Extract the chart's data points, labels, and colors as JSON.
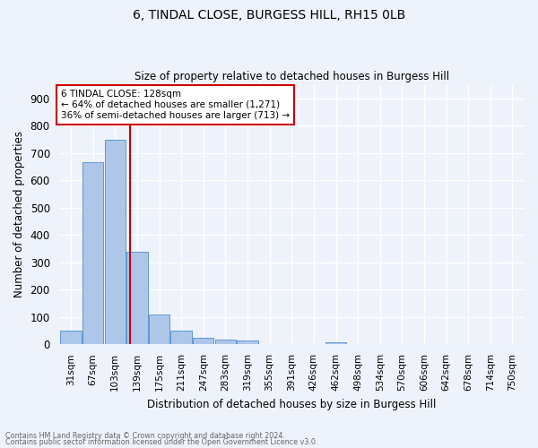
{
  "title1": "6, TINDAL CLOSE, BURGESS HILL, RH15 0LB",
  "title2": "Size of property relative to detached houses in Burgess Hill",
  "xlabel": "Distribution of detached houses by size in Burgess Hill",
  "ylabel": "Number of detached properties",
  "categories": [
    "31sqm",
    "67sqm",
    "103sqm",
    "139sqm",
    "175sqm",
    "211sqm",
    "247sqm",
    "283sqm",
    "319sqm",
    "355sqm",
    "391sqm",
    "426sqm",
    "462sqm",
    "498sqm",
    "534sqm",
    "570sqm",
    "606sqm",
    "642sqm",
    "678sqm",
    "714sqm",
    "750sqm"
  ],
  "bar_values": [
    50,
    665,
    750,
    338,
    108,
    50,
    25,
    18,
    13,
    0,
    0,
    0,
    8,
    0,
    0,
    0,
    0,
    0,
    0,
    0,
    0
  ],
  "bar_color": "#aec6e8",
  "bar_edge_color": "#5b9bd5",
  "ylim": [
    0,
    950
  ],
  "yticks": [
    0,
    100,
    200,
    300,
    400,
    500,
    600,
    700,
    800,
    900
  ],
  "property_line_x": 2.67,
  "property_line_color": "#cc0000",
  "annotation_text": "6 TINDAL CLOSE: 128sqm\n← 64% of detached houses are smaller (1,271)\n36% of semi-detached houses are larger (713) →",
  "annotation_box_color": "#ffffff",
  "annotation_box_edge": "#cc0000",
  "footer1": "Contains HM Land Registry data © Crown copyright and database right 2024.",
  "footer2": "Contains public sector information licensed under the Open Government Licence v3.0.",
  "background_color": "#eef2fb",
  "grid_color": "#ffffff"
}
